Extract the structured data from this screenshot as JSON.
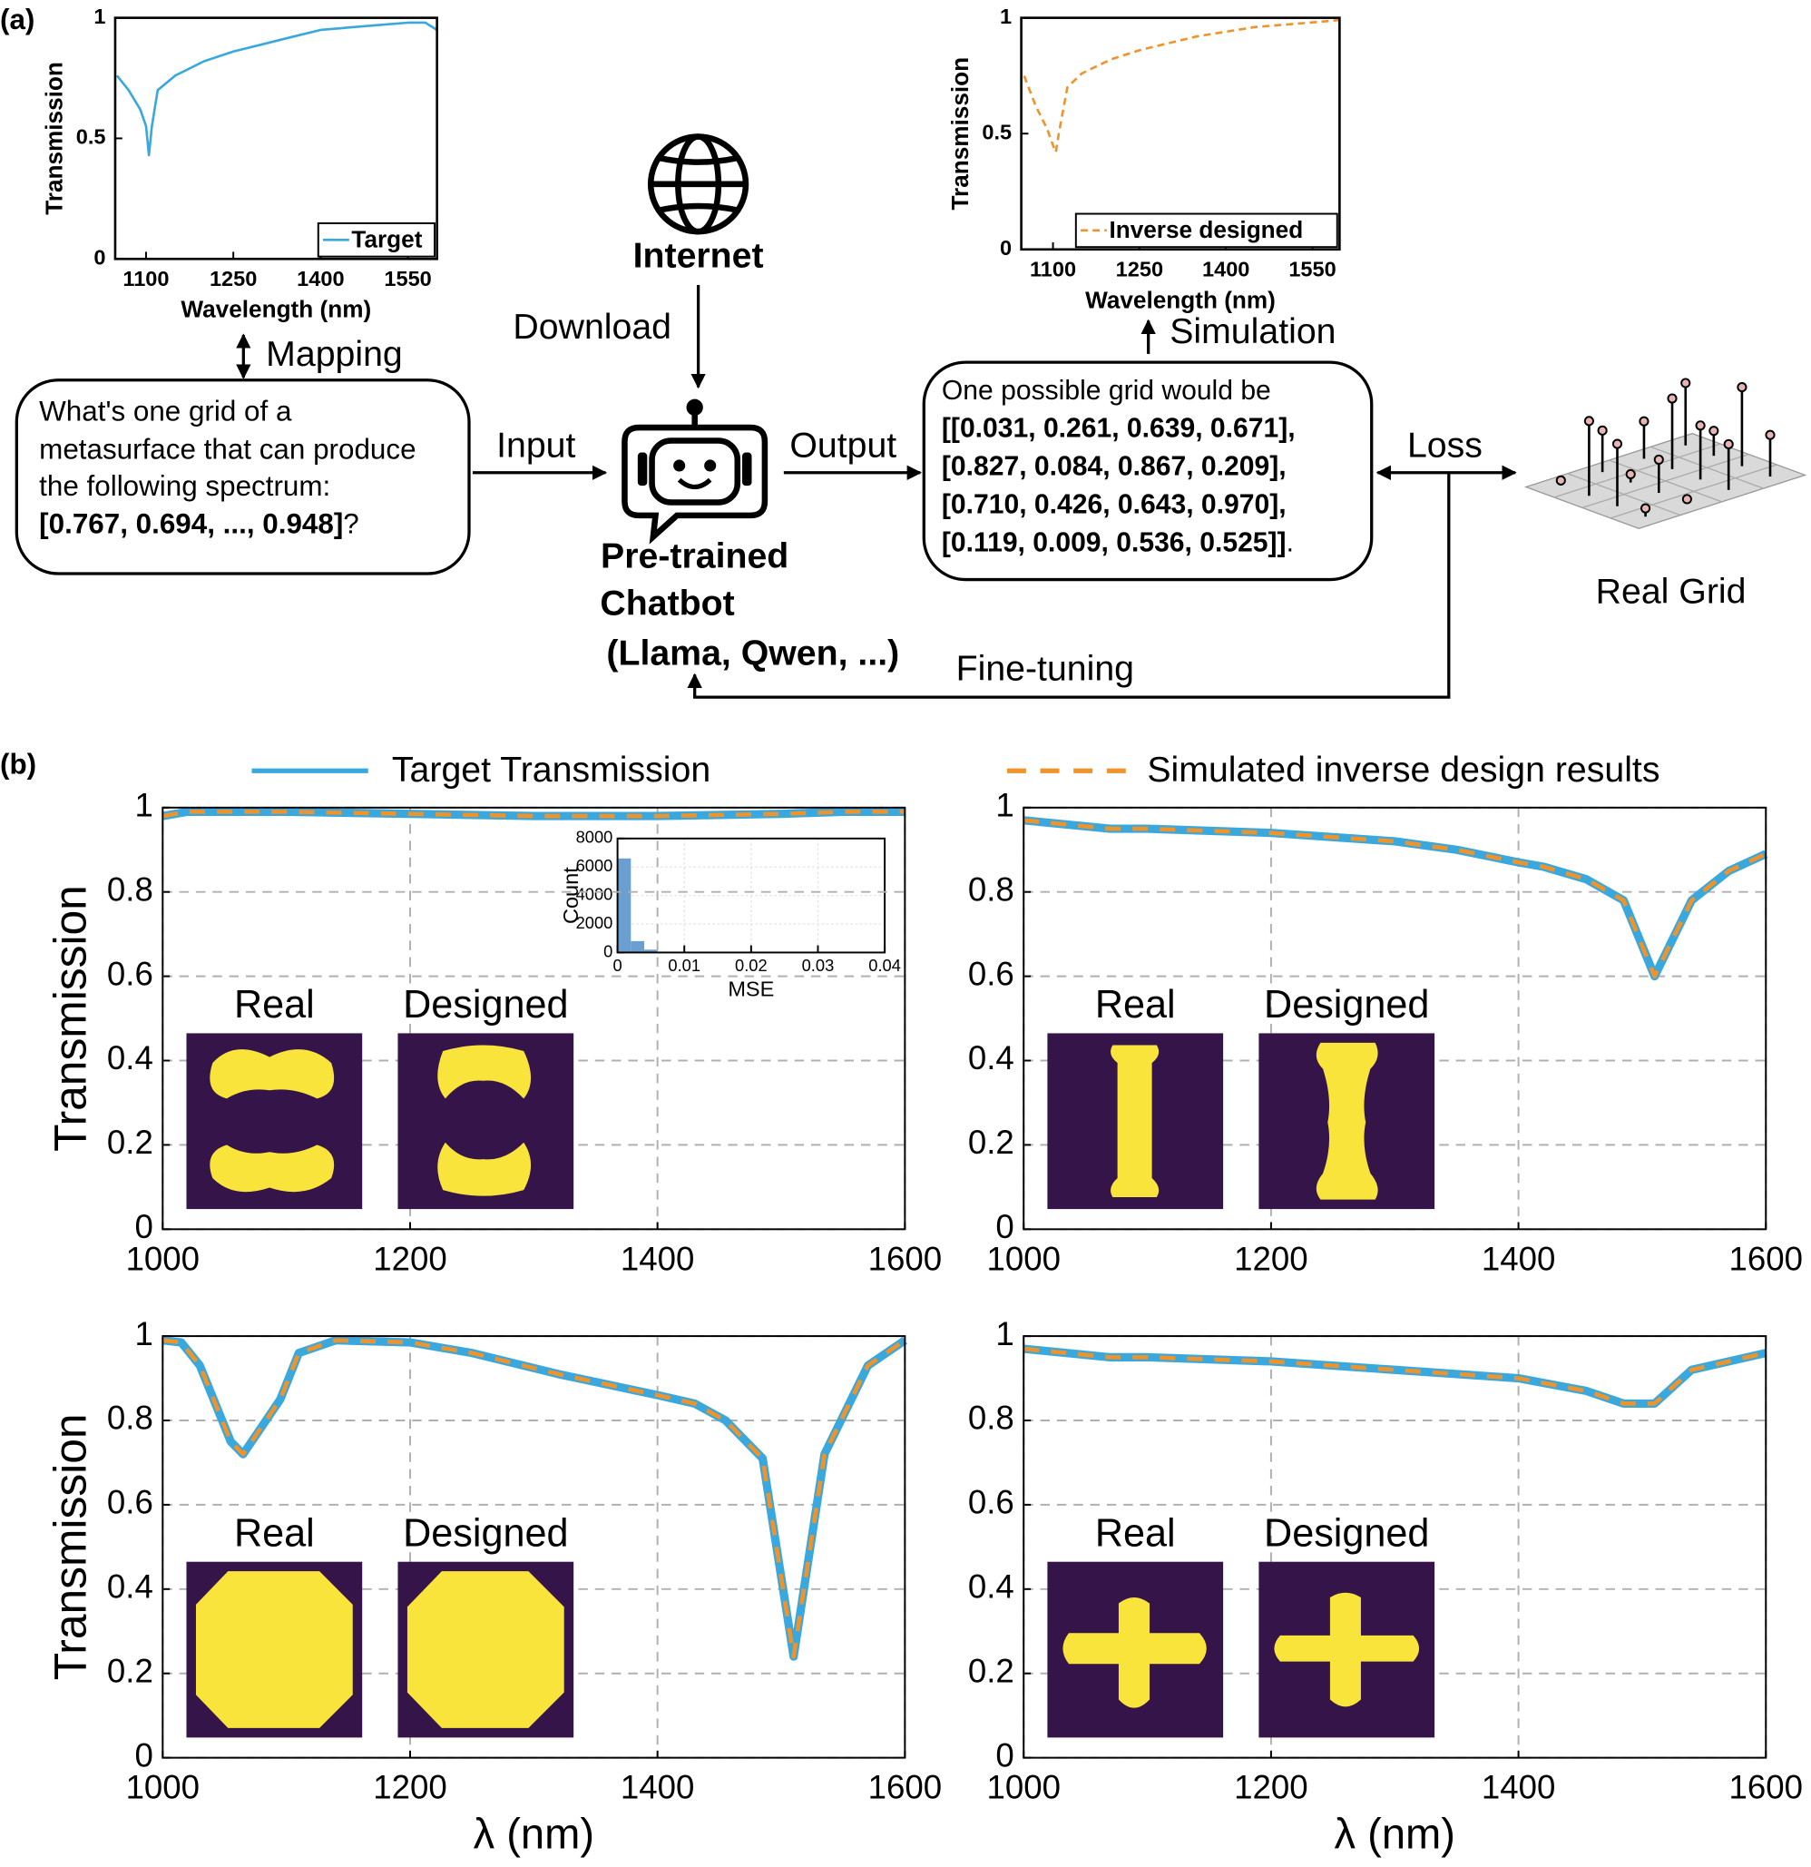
{
  "panel_labels": [
    "(a)",
    "(b)"
  ],
  "diagram": {
    "internet": "Internet",
    "download": "Download",
    "mapping": "Mapping",
    "input": "Input",
    "output": "Output",
    "simulation": "Simulation",
    "loss": "Loss",
    "fine_tuning": "Fine-tuning",
    "real_grid": "Real Grid",
    "chatbot": [
      "Pre-trained",
      "Chatbot",
      "(Llama, Qwen, ...)"
    ],
    "question": {
      "lines": [
        "What's one grid of a",
        "metasurface that can produce",
        "the following spectrum:"
      ],
      "spectrum": "[0.767, 0.694, ..., 0.948]",
      "end": "?"
    },
    "answer": {
      "intro": "One possible grid would be",
      "grid": [
        "[[0.031, 0.261, 0.639, 0.671],",
        "[0.827, 0.084, 0.867, 0.209],",
        "[0.710, 0.426, 0.643, 0.970],",
        "[0.119, 0.009, 0.536, 0.525]]"
      ],
      "end": "."
    }
  },
  "chart_data": [
    {
      "type": "line",
      "xlabel": "Wavelength (nm)",
      "ylabel": "Transmission",
      "xlim": [
        1047,
        1600
      ],
      "ylim": [
        0,
        1
      ],
      "xticks": [
        1100,
        1250,
        1400,
        1550
      ],
      "yticks": [
        0,
        0.5,
        1
      ],
      "grid": false,
      "legend": "lower right",
      "x": [
        1050,
        1070,
        1090,
        1100,
        1105,
        1110,
        1120,
        1150,
        1200,
        1250,
        1300,
        1350,
        1400,
        1450,
        1500,
        1550,
        1580,
        1600
      ],
      "series": [
        {
          "name": "Target",
          "color": "#3aa8dc",
          "dashed": false,
          "values": [
            0.76,
            0.7,
            0.62,
            0.55,
            0.43,
            0.55,
            0.7,
            0.76,
            0.82,
            0.86,
            0.89,
            0.92,
            0.95,
            0.96,
            0.97,
            0.98,
            0.98,
            0.95
          ]
        }
      ]
    },
    {
      "type": "line",
      "xlabel": "Wavelength (nm)",
      "ylabel": "Transmission",
      "xlim": [
        1045,
        1597
      ],
      "ylim": [
        0,
        1
      ],
      "xticks": [
        1100,
        1250,
        1400,
        1550
      ],
      "yticks": [
        0,
        0.5,
        1
      ],
      "grid": false,
      "legend": "lower right",
      "x": [
        1050,
        1070,
        1090,
        1100,
        1105,
        1110,
        1125,
        1150,
        1200,
        1250,
        1300,
        1350,
        1400,
        1450,
        1500,
        1550,
        1597
      ],
      "series": [
        {
          "name": "Inverse designed",
          "color": "#f0932b",
          "dashed": true,
          "values": [
            0.75,
            0.62,
            0.52,
            0.45,
            0.42,
            0.5,
            0.7,
            0.76,
            0.82,
            0.86,
            0.89,
            0.92,
            0.94,
            0.96,
            0.97,
            0.98,
            0.99
          ]
        }
      ]
    },
    {
      "type": "histogram",
      "xlabel": "MSE",
      "ylabel": "Count",
      "xlim": [
        0,
        0.04
      ],
      "ylim": [
        0,
        8000
      ],
      "xticks": [
        0,
        0.01,
        0.02,
        0.03,
        0.04
      ],
      "yticks": [
        0,
        2000,
        4000,
        6000,
        8000
      ],
      "grid": true,
      "color": "#6a9fcf",
      "bins": [
        0,
        0.002,
        0.004,
        0.006,
        0.008,
        0.01
      ],
      "counts": [
        6600,
        800,
        200,
        60,
        20
      ]
    },
    {
      "type": "line",
      "ylabel": "Transmission",
      "xlim": [
        1000,
        1600
      ],
      "ylim": [
        0,
        1
      ],
      "xticks": [
        1000,
        1200,
        1400,
        1600
      ],
      "yticks": [
        0,
        0.2,
        0.4,
        0.6,
        0.8,
        1
      ],
      "grid": true,
      "legend": "top",
      "inset_labels": [
        "Real",
        "Designed"
      ],
      "x": [
        1000,
        1020,
        1100,
        1200,
        1300,
        1400,
        1500,
        1550,
        1600
      ],
      "series": [
        {
          "name": "Target Transmission",
          "color": "#3aa8dc",
          "dashed": false,
          "values": [
            0.98,
            0.99,
            0.99,
            0.985,
            0.98,
            0.98,
            0.985,
            0.99,
            0.99
          ]
        },
        {
          "name": "Simulated inverse design results",
          "color": "#f0932b",
          "dashed": true,
          "values": [
            0.98,
            0.99,
            0.99,
            0.985,
            0.98,
            0.98,
            0.985,
            0.99,
            0.99
          ]
        }
      ]
    },
    {
      "type": "line",
      "xlim": [
        1000,
        1600
      ],
      "ylim": [
        0,
        1
      ],
      "xticks": [
        1000,
        1200,
        1400,
        1600
      ],
      "yticks": [
        0,
        0.2,
        0.4,
        0.6,
        0.8,
        1
      ],
      "grid": true,
      "inset_labels": [
        "Real",
        "Designed"
      ],
      "x": [
        1000,
        1070,
        1100,
        1200,
        1300,
        1350,
        1400,
        1420,
        1455,
        1485,
        1510,
        1540,
        1570,
        1600
      ],
      "series": [
        {
          "color": "#3aa8dc",
          "dashed": false,
          "values": [
            0.97,
            0.95,
            0.95,
            0.94,
            0.92,
            0.9,
            0.87,
            0.86,
            0.83,
            0.78,
            0.6,
            0.78,
            0.85,
            0.89
          ]
        },
        {
          "color": "#f0932b",
          "dashed": true,
          "values": [
            0.97,
            0.95,
            0.95,
            0.94,
            0.92,
            0.9,
            0.87,
            0.86,
            0.83,
            0.78,
            0.6,
            0.78,
            0.85,
            0.89
          ]
        }
      ]
    },
    {
      "type": "line",
      "ylabel": "Transmission",
      "xlabel": "λ  (nm)",
      "xlim": [
        1000,
        1600
      ],
      "ylim": [
        0,
        1
      ],
      "xticks": [
        1000,
        1200,
        1400,
        1600
      ],
      "yticks": [
        0,
        0.2,
        0.4,
        0.6,
        0.8,
        1
      ],
      "grid": true,
      "inset_labels": [
        "Real",
        "Designed"
      ],
      "x": [
        1000,
        1015,
        1030,
        1055,
        1065,
        1095,
        1110,
        1140,
        1200,
        1250,
        1320,
        1400,
        1430,
        1455,
        1485,
        1510,
        1535,
        1570,
        1600
      ],
      "series": [
        {
          "color": "#3aa8dc",
          "dashed": false,
          "values": [
            0.99,
            0.985,
            0.93,
            0.75,
            0.72,
            0.85,
            0.96,
            0.99,
            0.985,
            0.96,
            0.91,
            0.86,
            0.84,
            0.8,
            0.71,
            0.24,
            0.72,
            0.93,
            0.99
          ]
        },
        {
          "color": "#f0932b",
          "dashed": true,
          "values": [
            0.99,
            0.985,
            0.93,
            0.75,
            0.72,
            0.85,
            0.96,
            0.99,
            0.985,
            0.96,
            0.91,
            0.86,
            0.84,
            0.8,
            0.71,
            0.24,
            0.72,
            0.93,
            0.99
          ]
        }
      ]
    },
    {
      "type": "line",
      "xlabel": "λ  (nm)",
      "xlim": [
        1000,
        1600
      ],
      "ylim": [
        0,
        1
      ],
      "xticks": [
        1000,
        1200,
        1400,
        1600
      ],
      "yticks": [
        0,
        0.2,
        0.4,
        0.6,
        0.8,
        1
      ],
      "grid": true,
      "inset_labels": [
        "Real",
        "Designed"
      ],
      "x": [
        1000,
        1070,
        1100,
        1200,
        1300,
        1400,
        1455,
        1485,
        1510,
        1540,
        1570,
        1600
      ],
      "series": [
        {
          "color": "#3aa8dc",
          "dashed": false,
          "values": [
            0.97,
            0.95,
            0.95,
            0.94,
            0.92,
            0.9,
            0.87,
            0.84,
            0.84,
            0.92,
            0.94,
            0.96
          ]
        },
        {
          "color": "#f0932b",
          "dashed": true,
          "values": [
            0.97,
            0.95,
            0.95,
            0.94,
            0.92,
            0.9,
            0.87,
            0.84,
            0.84,
            0.92,
            0.94,
            0.96
          ]
        }
      ]
    }
  ]
}
